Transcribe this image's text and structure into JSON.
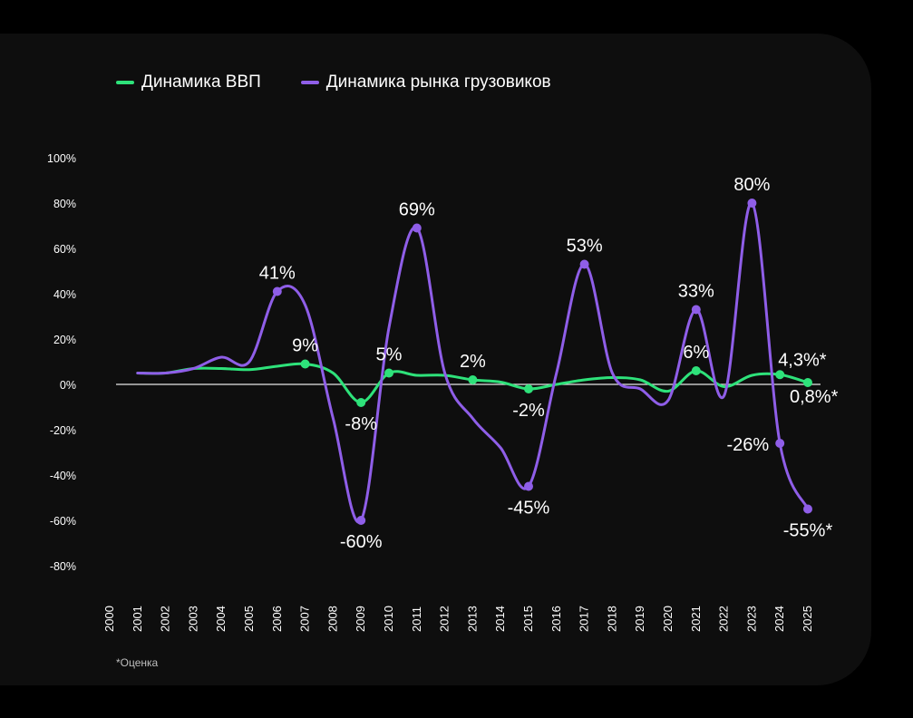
{
  "chart_data": {
    "type": "line",
    "title": "",
    "xlabel": "",
    "ylabel": "",
    "ylim": [
      -80,
      100
    ],
    "yticks": [
      "100%",
      "80%",
      "60%",
      "40%",
      "20%",
      "0%",
      "-20%",
      "-40%",
      "-60%",
      "-80%"
    ],
    "ytick_values": [
      100,
      80,
      60,
      40,
      20,
      0,
      -20,
      -40,
      -60,
      -80
    ],
    "x": [
      "2000",
      "2001",
      "2002",
      "2003",
      "2004",
      "2005",
      "2006",
      "2007",
      "2008",
      "2009",
      "2010",
      "2011",
      "2012",
      "2013",
      "2014",
      "2015",
      "2016",
      "2017",
      "2018",
      "2019",
      "2020",
      "2021",
      "2022",
      "2023",
      "2024",
      "2025"
    ],
    "legend_position": "top-left",
    "grid": false,
    "zero_line": true,
    "series": [
      {
        "name": "Динамика ВВП",
        "color": "#2ee27a",
        "start_index": 1,
        "values": [
          5,
          5,
          7,
          7,
          6.5,
          8,
          9,
          5,
          -8,
          5,
          4,
          4,
          2,
          1,
          -2,
          0,
          2,
          3,
          2,
          -3,
          6,
          -1,
          4,
          4.3,
          0.8
        ],
        "markers": [
          {
            "year": "2007",
            "value": 9,
            "label": "9%",
            "pos": "above"
          },
          {
            "year": "2009",
            "value": -8,
            "label": "-8%",
            "pos": "below"
          },
          {
            "year": "2010",
            "value": 5,
            "label": "5%",
            "pos": "above"
          },
          {
            "year": "2013",
            "value": 2,
            "label": "2%",
            "pos": "above"
          },
          {
            "year": "2015",
            "value": -2,
            "label": "-2%",
            "pos": "below"
          },
          {
            "year": "2021",
            "value": 6,
            "label": "6%",
            "pos": "above"
          },
          {
            "year": "2024",
            "value": 4.3,
            "label": "4,3%*",
            "pos": "above-right"
          },
          {
            "year": "2025",
            "value": 0.8,
            "label": "0,8%*",
            "pos": "below-right"
          }
        ]
      },
      {
        "name": "Динамика рынка грузовиков",
        "color": "#8f5ee8",
        "start_index": 1,
        "values": [
          5,
          5,
          7,
          12,
          10,
          41,
          35,
          -15,
          -60,
          25,
          69,
          5,
          -15,
          -28,
          -45,
          5,
          53,
          5,
          -2,
          -7,
          33,
          -5,
          80,
          -26,
          -55
        ],
        "markers": [
          {
            "year": "2006",
            "value": 41,
            "label": "41%",
            "pos": "above"
          },
          {
            "year": "2009",
            "value": -60,
            "label": "-60%",
            "pos": "below"
          },
          {
            "year": "2011",
            "value": 69,
            "label": "69%",
            "pos": "above"
          },
          {
            "year": "2015",
            "value": -45,
            "label": "-45%",
            "pos": "below"
          },
          {
            "year": "2017",
            "value": 53,
            "label": "53%",
            "pos": "above"
          },
          {
            "year": "2021",
            "value": 33,
            "label": "33%",
            "pos": "above"
          },
          {
            "year": "2023",
            "value": 80,
            "label": "80%",
            "pos": "above"
          },
          {
            "year": "2024",
            "value": -26,
            "label": "-26%",
            "pos": "left"
          },
          {
            "year": "2025",
            "value": -55,
            "label": "-55%*",
            "pos": "below"
          }
        ]
      }
    ]
  },
  "legend": {
    "items": [
      {
        "label": "Динамика ВВП",
        "color": "#2ee27a"
      },
      {
        "label": "Динамика рынка грузовиков",
        "color": "#8f5ee8"
      }
    ]
  },
  "footnote": "*Оценка",
  "colors": {
    "background": "#000000",
    "panel": "#0e0e0e",
    "text": "#ffffff",
    "zero_line": "#e6e6e6"
  }
}
